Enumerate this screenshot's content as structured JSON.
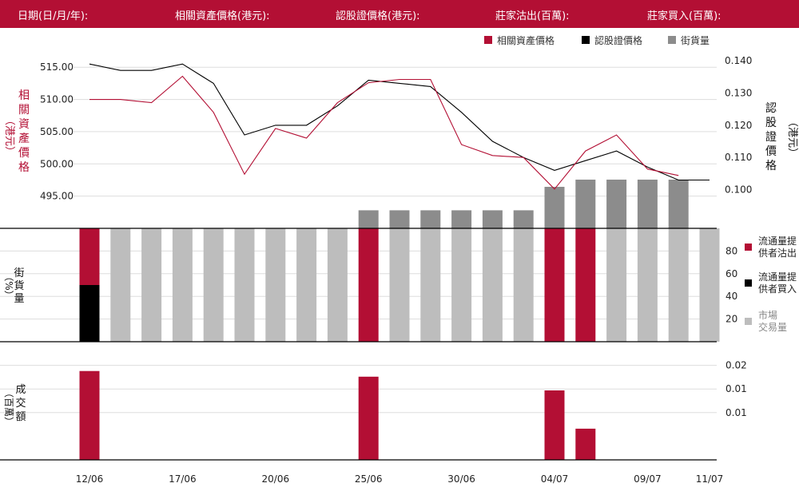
{
  "header": {
    "items": [
      "日期(日/月/年):",
      "相關資產價格(港元):",
      "認股證價格(港元):",
      "莊家沽出(百萬):",
      "莊家買入(百萬):"
    ]
  },
  "colors": {
    "header_bg": "#b30f34",
    "asset": "#b30f34",
    "warrant": "#000000",
    "outstanding": "#8c8c8c",
    "market": "#bdbdbd",
    "sell": "#b30f34",
    "buy": "#000000"
  },
  "chart_data": [
    {
      "type": "line",
      "legend": [
        "相關資產價格",
        "認股證價格",
        "街貨量"
      ],
      "left_axis_label": [
        "相",
        "關",
        "資",
        "產",
        "價",
        "格"
      ],
      "left_axis_unit": "（港元）",
      "right_axis_label": [
        "認",
        "股",
        "證",
        "價",
        "格"
      ],
      "right_axis_unit": "（港元）",
      "left_ticks": [
        "515.00",
        "510.00",
        "505.00",
        "500.00",
        "495.00"
      ],
      "left_tick_values": [
        515,
        510,
        505,
        500,
        495
      ],
      "right_ticks": [
        "0.140",
        "0.130",
        "0.120",
        "0.110",
        "0.100"
      ],
      "right_tick_values": [
        0.14,
        0.13,
        0.12,
        0.11,
        0.1
      ],
      "ylim_left": [
        490,
        518
      ],
      "ylim_right": [
        0.088,
        0.144
      ],
      "x_labels": [
        "12/06",
        "17/06",
        "20/06",
        "25/06",
        "30/06",
        "04/07",
        "09/07",
        "11/07"
      ],
      "x_label_index": [
        0,
        3,
        6,
        9,
        12,
        15,
        18,
        20
      ],
      "asset_price": [
        510,
        510,
        509.5,
        513.6,
        508,
        498.4,
        505.5,
        504,
        509.5,
        512.6,
        513.1,
        513.1,
        503,
        501.3,
        501,
        496.1,
        502,
        504.5,
        499.2,
        498.2,
        null
      ],
      "warrant_price": [
        0.139,
        0.137,
        0.137,
        0.139,
        0.133,
        0.117,
        0.12,
        0.12,
        0.126,
        0.134,
        0.133,
        0.132,
        0.124,
        0.115,
        0.11,
        0.106,
        0.109,
        0.112,
        0.107,
        0.103,
        0.103
      ],
      "outstanding_index": [
        9,
        10,
        11,
        12,
        13,
        14,
        15,
        16,
        17,
        18,
        19
      ],
      "outstanding_level": [
        0.1,
        0.1,
        0.1,
        0.1,
        0.1,
        0.1,
        0.23,
        0.27,
        0.27,
        0.27,
        0.27
      ]
    },
    {
      "type": "bar",
      "axis_label": [
        "街",
        "貨",
        "量"
      ],
      "axis_unit": "（%）",
      "ticks": [
        "80",
        "60",
        "40",
        "20"
      ],
      "tick_values": [
        80,
        60,
        40,
        20
      ],
      "ylim": [
        0,
        100
      ],
      "legend": [
        [
          "流通量提",
          "供者沽出"
        ],
        [
          "流通量提",
          "供者買入"
        ],
        [
          "市場",
          "交易量"
        ]
      ],
      "bars": [
        {
          "sell": 50,
          "buy": 50,
          "market": 0
        },
        {
          "sell": 0,
          "buy": 0,
          "market": 100
        },
        {
          "sell": 0,
          "buy": 0,
          "market": 100
        },
        {
          "sell": 0,
          "buy": 0,
          "market": 100
        },
        {
          "sell": 0,
          "buy": 0,
          "market": 100
        },
        {
          "sell": 0,
          "buy": 0,
          "market": 100
        },
        {
          "sell": 0,
          "buy": 0,
          "market": 100
        },
        {
          "sell": 0,
          "buy": 0,
          "market": 100
        },
        {
          "sell": 0,
          "buy": 0,
          "market": 100
        },
        {
          "sell": 100,
          "buy": 0,
          "market": 0
        },
        {
          "sell": 0,
          "buy": 0,
          "market": 100
        },
        {
          "sell": 0,
          "buy": 0,
          "market": 100
        },
        {
          "sell": 0,
          "buy": 0,
          "market": 100
        },
        {
          "sell": 0,
          "buy": 0,
          "market": 100
        },
        {
          "sell": 0,
          "buy": 0,
          "market": 100
        },
        {
          "sell": 100,
          "buy": 0,
          "market": 0
        },
        {
          "sell": 100,
          "buy": 0,
          "market": 0
        },
        {
          "sell": 0,
          "buy": 0,
          "market": 100
        },
        {
          "sell": 0,
          "buy": 0,
          "market": 100
        },
        {
          "sell": 0,
          "buy": 0,
          "market": 100
        },
        {
          "sell": 0,
          "buy": 0,
          "market": 100
        }
      ]
    },
    {
      "type": "bar",
      "axis_label": [
        "成",
        "交",
        "額"
      ],
      "axis_unit": "（百萬）",
      "ticks": [
        "0.02",
        "0.01",
        "0.01"
      ],
      "tick_values": [
        0.02,
        0.015,
        0.01
      ],
      "ylim": [
        0,
        0.025
      ],
      "values": [
        0.0188,
        0,
        0,
        0,
        0,
        0,
        0,
        0,
        0,
        0.0176,
        0,
        0,
        0,
        0,
        0,
        0.0147,
        0.0066,
        0,
        0,
        0,
        0
      ]
    }
  ]
}
